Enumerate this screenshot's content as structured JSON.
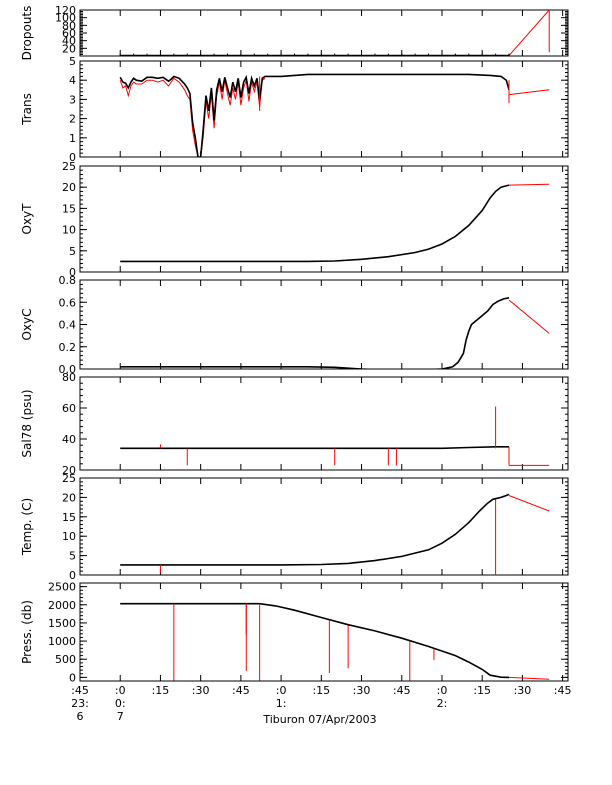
{
  "chart_data": {
    "type": "line",
    "title": "",
    "footer_label": "Tiburon 07/Apr/2003",
    "colors": {
      "data": "#000000",
      "flagged": "#ff0000",
      "axis": "#000000"
    },
    "x_axis": {
      "ticks": [
        {
          "t": -15,
          "row1": ":45",
          "row2": "23:",
          "row3": "6"
        },
        {
          "t": 0,
          "row1": ":0",
          "row2": "0:",
          "row3": "7"
        },
        {
          "t": 15,
          "row1": ":15",
          "row2": "",
          "row3": ""
        },
        {
          "t": 30,
          "row1": ":30",
          "row2": "",
          "row3": ""
        },
        {
          "t": 45,
          "row1": ":45",
          "row2": "",
          "row3": ""
        },
        {
          "t": 60,
          "row1": ":0",
          "row2": "1:",
          "row3": ""
        },
        {
          "t": 75,
          "row1": ":15",
          "row2": "",
          "row3": ""
        },
        {
          "t": 90,
          "row1": ":30",
          "row2": "",
          "row3": ""
        },
        {
          "t": 105,
          "row1": ":45",
          "row2": "",
          "row3": ""
        },
        {
          "t": 120,
          "row1": ":0",
          "row2": "2:",
          "row3": ""
        },
        {
          "t": 135,
          "row1": ":15",
          "row2": "",
          "row3": ""
        },
        {
          "t": 150,
          "row1": ":30",
          "row2": "",
          "row3": ""
        },
        {
          "t": 165,
          "row1": ":45",
          "row2": "",
          "row3": ""
        }
      ],
      "range": [
        -15,
        167
      ]
    },
    "panels": [
      {
        "ylabel": "Dropouts",
        "ylim": [
          0,
          120
        ],
        "yticks": [
          20,
          40,
          60,
          80,
          100,
          120
        ],
        "ytick_labels": [
          "20",
          "40",
          "60",
          "80",
          "100",
          "120"
        ],
        "black_series": [
          [
            0,
            1
          ],
          [
            145,
            1
          ]
        ],
        "red_series": [
          [
            145,
            1
          ],
          [
            160,
            120
          ]
        ],
        "red_spikes": [
          [
            160,
            120,
            10
          ]
        ]
      },
      {
        "ylabel": "Trans",
        "ylim": [
          0,
          5
        ],
        "yticks": [
          0,
          1,
          2,
          3,
          4,
          5
        ],
        "ytick_labels": [
          "0",
          "1",
          "2",
          "3",
          "4",
          "5"
        ],
        "black_series": [
          [
            0,
            4.15
          ],
          [
            1,
            3.9
          ],
          [
            2,
            3.85
          ],
          [
            3,
            3.6
          ],
          [
            4,
            3.9
          ],
          [
            5,
            4.1
          ],
          [
            6,
            4.0
          ],
          [
            8,
            3.95
          ],
          [
            10,
            4.15
          ],
          [
            12,
            4.15
          ],
          [
            14,
            4.1
          ],
          [
            16,
            4.15
          ],
          [
            18,
            3.95
          ],
          [
            19,
            4.05
          ],
          [
            20,
            4.2
          ],
          [
            22,
            4.1
          ],
          [
            24,
            3.8
          ],
          [
            25,
            3.6
          ],
          [
            26,
            3.3
          ],
          [
            27,
            1.8
          ],
          [
            28,
            1.0
          ],
          [
            29,
            0.0
          ],
          [
            30,
            0.0
          ],
          [
            31,
            1.5
          ],
          [
            32,
            3.2
          ],
          [
            33,
            2.4
          ],
          [
            34,
            3.6
          ],
          [
            35,
            1.9
          ],
          [
            36,
            3.5
          ],
          [
            37,
            4.1
          ],
          [
            38,
            3.4
          ],
          [
            39,
            4.15
          ],
          [
            40,
            3.6
          ],
          [
            41,
            3.1
          ],
          [
            42,
            3.9
          ],
          [
            43,
            3.4
          ],
          [
            44,
            4.1
          ],
          [
            45,
            3.1
          ],
          [
            46,
            3.9
          ],
          [
            47,
            4.15
          ],
          [
            48,
            3.3
          ],
          [
            49,
            4.1
          ],
          [
            50,
            3.7
          ],
          [
            51,
            4.1
          ],
          [
            52,
            3.0
          ],
          [
            53,
            4.1
          ],
          [
            54,
            4.2
          ],
          [
            56,
            4.2
          ],
          [
            60,
            4.2
          ],
          [
            70,
            4.3
          ],
          [
            80,
            4.3
          ],
          [
            90,
            4.3
          ],
          [
            100,
            4.3
          ],
          [
            110,
            4.3
          ],
          [
            120,
            4.3
          ],
          [
            130,
            4.3
          ],
          [
            138,
            4.25
          ],
          [
            142,
            4.2
          ],
          [
            144,
            4.0
          ],
          [
            145,
            3.5
          ]
        ],
        "red_series": [
          [
            0,
            4.0
          ],
          [
            1,
            3.6
          ],
          [
            2,
            3.7
          ],
          [
            3,
            3.2
          ],
          [
            4,
            3.7
          ],
          [
            5,
            3.9
          ],
          [
            6,
            3.8
          ],
          [
            8,
            3.8
          ],
          [
            10,
            4.0
          ],
          [
            12,
            4.0
          ],
          [
            14,
            3.9
          ],
          [
            16,
            4.0
          ],
          [
            18,
            3.7
          ],
          [
            19,
            3.9
          ],
          [
            20,
            4.1
          ],
          [
            22,
            3.9
          ],
          [
            24,
            3.5
          ],
          [
            25,
            3.2
          ],
          [
            26,
            3.0
          ],
          [
            27,
            1.4
          ],
          [
            28,
            0.6
          ],
          [
            29,
            0.0
          ],
          [
            30,
            0.0
          ],
          [
            31,
            1.1
          ],
          [
            32,
            2.9
          ],
          [
            33,
            2.0
          ],
          [
            34,
            3.3
          ],
          [
            35,
            1.5
          ],
          [
            36,
            3.2
          ],
          [
            37,
            3.9
          ],
          [
            38,
            3.0
          ],
          [
            39,
            4.0
          ],
          [
            40,
            3.3
          ],
          [
            41,
            2.7
          ],
          [
            42,
            3.6
          ],
          [
            43,
            3.0
          ],
          [
            44,
            3.9
          ],
          [
            45,
            2.7
          ],
          [
            46,
            3.6
          ],
          [
            47,
            4.0
          ],
          [
            48,
            2.9
          ],
          [
            49,
            3.9
          ],
          [
            50,
            3.4
          ],
          [
            51,
            3.9
          ],
          [
            52,
            2.6
          ],
          [
            53,
            4.0
          ],
          [
            54,
            4.1
          ]
        ],
        "red_spikes": [
          [
            52,
            4.2,
            2.4
          ],
          [
            145,
            4.0,
            2.8
          ]
        ],
        "red_tail": [
          [
            145,
            3.25
          ],
          [
            160,
            3.5
          ]
        ]
      },
      {
        "ylabel": "OxyT",
        "ylim": [
          0,
          25
        ],
        "yticks": [
          0,
          5,
          10,
          15,
          20,
          25
        ],
        "ytick_labels": [
          "0",
          "5",
          "10",
          "15",
          "20",
          "25"
        ],
        "black_series": [
          [
            0,
            2.5
          ],
          [
            20,
            2.5
          ],
          [
            40,
            2.5
          ],
          [
            60,
            2.5
          ],
          [
            70,
            2.5
          ],
          [
            80,
            2.6
          ],
          [
            90,
            3.0
          ],
          [
            100,
            3.6
          ],
          [
            110,
            4.6
          ],
          [
            115,
            5.4
          ],
          [
            120,
            6.6
          ],
          [
            125,
            8.4
          ],
          [
            130,
            11.0
          ],
          [
            135,
            14.5
          ],
          [
            138,
            17.5
          ],
          [
            140,
            19.0
          ],
          [
            142,
            20.0
          ],
          [
            145,
            20.5
          ]
        ],
        "red_series": [],
        "red_spikes": [],
        "red_tail": [
          [
            145,
            20.5
          ],
          [
            160,
            20.7
          ]
        ]
      },
      {
        "ylabel": "OxyC",
        "ylim": [
          0,
          0.8
        ],
        "yticks": [
          0,
          0.2,
          0.4,
          0.6,
          0.8
        ],
        "ytick_labels": [
          "0.0",
          "0.2",
          "0.4",
          "0.6",
          "0.8"
        ],
        "black_series": [
          [
            0,
            0.02
          ],
          [
            40,
            0.02
          ],
          [
            70,
            0.02
          ],
          [
            80,
            0.015
          ],
          [
            90,
            0.0
          ],
          [
            100,
            -0.01
          ],
          [
            110,
            -0.01
          ],
          [
            115,
            -0.005
          ],
          [
            120,
            0.0
          ],
          [
            124,
            0.02
          ],
          [
            126,
            0.06
          ],
          [
            128,
            0.14
          ],
          [
            129,
            0.26
          ],
          [
            130,
            0.34
          ],
          [
            131,
            0.4
          ],
          [
            133,
            0.44
          ],
          [
            135,
            0.48
          ],
          [
            137,
            0.52
          ],
          [
            139,
            0.58
          ],
          [
            141,
            0.61
          ],
          [
            143,
            0.63
          ],
          [
            145,
            0.64
          ]
        ],
        "red_series": [],
        "red_spikes": [],
        "red_tail": [
          [
            145,
            0.62
          ],
          [
            160,
            0.32
          ]
        ]
      },
      {
        "ylabel": "Sal78 (psu)",
        "ylim": [
          20,
          80
        ],
        "yticks": [
          20,
          40,
          60,
          80
        ],
        "ytick_labels": [
          "20",
          "40",
          "60",
          "80"
        ],
        "black_series": [
          [
            0,
            34
          ],
          [
            60,
            34
          ],
          [
            100,
            34
          ],
          [
            120,
            34
          ],
          [
            130,
            34.5
          ],
          [
            140,
            35
          ],
          [
            145,
            35
          ]
        ],
        "red_series": [],
        "red_spikes": [
          [
            15,
            34,
            36.5
          ],
          [
            25,
            34,
            23
          ],
          [
            80,
            34,
            23
          ],
          [
            100,
            34,
            23
          ],
          [
            103,
            34,
            23
          ],
          [
            140,
            34,
            61
          ],
          [
            145,
            35,
            23
          ]
        ],
        "red_tail": [
          [
            145,
            23
          ],
          [
            160,
            23
          ]
        ]
      },
      {
        "ylabel": "Temp. (C)",
        "ylim": [
          0,
          25
        ],
        "yticks": [
          0,
          5,
          10,
          15,
          20,
          25
        ],
        "ytick_labels": [
          "0",
          "5",
          "10",
          "15",
          "20",
          "25"
        ],
        "black_series": [
          [
            0,
            2.6
          ],
          [
            20,
            2.6
          ],
          [
            40,
            2.6
          ],
          [
            60,
            2.6
          ],
          [
            75,
            2.7
          ],
          [
            85,
            3.0
          ],
          [
            95,
            3.7
          ],
          [
            105,
            4.8
          ],
          [
            115,
            6.5
          ],
          [
            120,
            8.2
          ],
          [
            125,
            10.5
          ],
          [
            130,
            13.5
          ],
          [
            134,
            16.5
          ],
          [
            137,
            18.5
          ],
          [
            139,
            19.5
          ],
          [
            142,
            20.0
          ],
          [
            144,
            20.5
          ],
          [
            145,
            20.8
          ]
        ],
        "red_series": [],
        "red_spikes": [
          [
            15,
            2.6,
            0.5
          ],
          [
            140,
            19.5,
            -0.5
          ]
        ],
        "red_tail": [
          [
            145,
            20.5
          ],
          [
            160,
            16.5
          ]
        ]
      },
      {
        "ylabel": "Press. (db)",
        "ylim": [
          -100,
          2600
        ],
        "yticks": [
          0,
          500,
          1000,
          1500,
          2000,
          2500
        ],
        "ytick_labels": [
          "0",
          "500",
          "1000",
          "1500",
          "2000",
          "2500"
        ],
        "black_series": [
          [
            0,
            2030
          ],
          [
            20,
            2030
          ],
          [
            40,
            2030
          ],
          [
            52,
            2030
          ],
          [
            58,
            1970
          ],
          [
            65,
            1850
          ],
          [
            75,
            1650
          ],
          [
            85,
            1450
          ],
          [
            95,
            1280
          ],
          [
            105,
            1080
          ],
          [
            115,
            850
          ],
          [
            125,
            600
          ],
          [
            130,
            420
          ],
          [
            135,
            220
          ],
          [
            138,
            60
          ],
          [
            142,
            5
          ],
          [
            145,
            0
          ]
        ],
        "red_series": [],
        "red_spikes": [
          [
            20,
            2030,
            -90
          ],
          [
            47,
            2030,
            180
          ],
          [
            47,
            2030,
            1180
          ],
          [
            52,
            2030,
            -90
          ],
          [
            78,
            1580,
            120
          ],
          [
            85,
            1430,
            250
          ],
          [
            108,
            1000,
            -90
          ],
          [
            117,
            780,
            480
          ]
        ],
        "red_tail": [
          [
            145,
            0
          ],
          [
            160,
            -50
          ]
        ]
      }
    ]
  }
}
